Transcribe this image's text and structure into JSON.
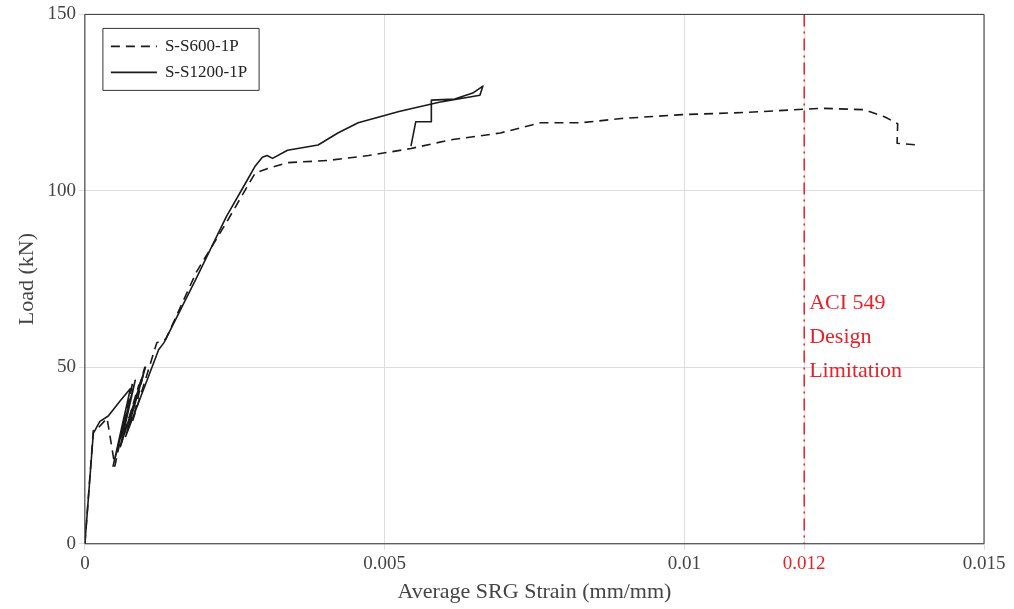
{
  "chart_data": {
    "type": "line",
    "xlabel": "Average SRG Strain (mm/mm)",
    "ylabel": "Load (kN)",
    "xlim": [
      0,
      0.015
    ],
    "xticks": [
      0,
      0.005,
      {
        "value": 0.01,
        "label": "0.01"
      },
      {
        "value": 0.012,
        "label": "0.012"
      },
      0.015
    ],
    "ylim": [
      0,
      150
    ],
    "yticks": [
      0,
      50,
      100,
      150
    ],
    "grid": true,
    "legend": "top left",
    "marker": "none",
    "ref_lines": [
      {
        "axis": "x",
        "value": 0.012,
        "label": "ACI 549\nDesign\nLimitation",
        "color": "#e8202a",
        "line_style": "dashdot"
      }
    ],
    "series": [
      {
        "name": "S-S600-1P",
        "color": "#1a1a1a",
        "line_style": "dashed",
        "x": [
          0,
          0.00014,
          0.0002,
          0.00037,
          0.0005,
          0.0008,
          0.0006,
          0.0009,
          0.0007,
          0.001,
          0.0008,
          0.0012,
          0.00135,
          0.00186,
          0.00236,
          0.0027,
          0.00284,
          0.00304,
          0.00338,
          0.00405,
          0.00473,
          0.00544,
          0.00608,
          0.00693,
          0.0076,
          0.00828,
          0.00895,
          0.00997,
          0.011,
          0.01165,
          0.0123,
          0.013,
          0.01334,
          0.01356,
          0.01355,
          0.01389
        ],
        "values": [
          0,
          32,
          32.4,
          35.6,
          22,
          46,
          28,
          45,
          33,
          50,
          35,
          57,
          58,
          77,
          91,
          101,
          105,
          106.3,
          108,
          108.6,
          110,
          112,
          114.4,
          116.4,
          119.3,
          119.3,
          120.5,
          121.6,
          122.2,
          122.8,
          123.4,
          123,
          121,
          119,
          113.5,
          113
        ]
      },
      {
        "name": "S-S1200-1P",
        "color": "#1a1a1a",
        "line_style": "solid",
        "x": [
          0,
          0.00014,
          0.00025,
          0.00039,
          0.00059,
          0.00076,
          0.00047,
          0.00084,
          0.00059,
          0.00101,
          0.00068,
          0.00123,
          0.00132,
          0.00186,
          0.00236,
          0.0027,
          0.00284,
          0.00296,
          0.00304,
          0.00313,
          0.00338,
          0.00389,
          0.00422,
          0.00456,
          0.00524,
          0.00591,
          0.00659,
          0.00664,
          0.00647,
          0.00617,
          0.00578,
          0.00578,
          0.00552,
          0.00544
        ],
        "values": [
          0,
          31.3,
          34.7,
          36.2,
          40.5,
          44,
          22,
          46.3,
          27.5,
          50,
          30.4,
          55,
          57,
          75.3,
          92.7,
          102.8,
          107,
          109.5,
          110,
          109.2,
          111.5,
          113,
          116.4,
          119.3,
          122.5,
          125.1,
          127.1,
          129.7,
          127.7,
          126,
          125.7,
          119.6,
          119.6,
          112.7
        ]
      }
    ]
  }
}
